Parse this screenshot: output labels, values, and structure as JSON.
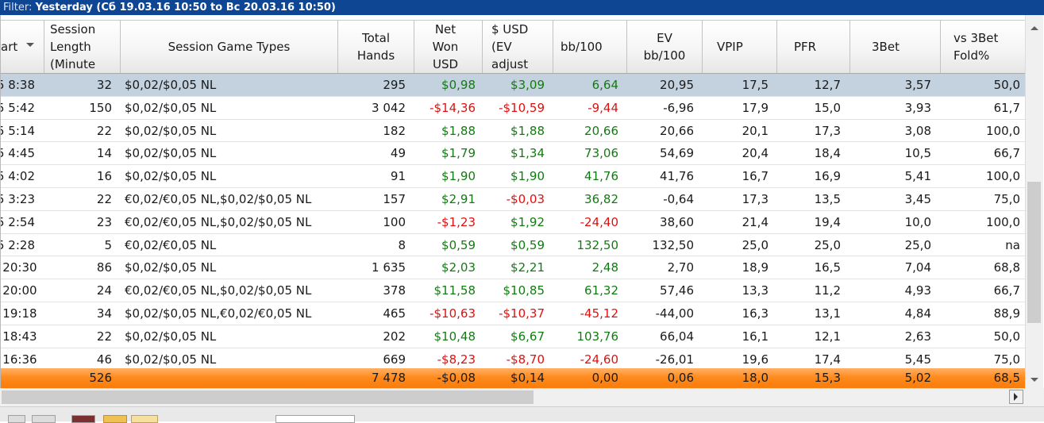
{
  "filter": {
    "label": "Filter:",
    "value": "Yesterday (Сб 19.03.16 10:50 to Вс 20.03.16 10:50)"
  },
  "columns": [
    {
      "key": "start",
      "label": "art"
    },
    {
      "key": "length",
      "label": "Session Length (Minute"
    },
    {
      "key": "types",
      "label": "Session Game Types"
    },
    {
      "key": "hands",
      "label": "Total Hands"
    },
    {
      "key": "net",
      "label": "Net Won USD"
    },
    {
      "key": "ev",
      "label": "$ USD (EV adjust"
    },
    {
      "key": "bb",
      "label": "bb/100"
    },
    {
      "key": "evbb",
      "label": "EV bb/100"
    },
    {
      "key": "vpip",
      "label": "VPIP"
    },
    {
      "key": "pfr",
      "label": "PFR"
    },
    {
      "key": "bet3",
      "label": "3Bet"
    },
    {
      "key": "fold3",
      "label": "vs 3Bet Fold%"
    }
  ],
  "rows": [
    {
      "start": "5 8:38",
      "length": "32",
      "types": "$0,02/$0,05 NL",
      "hands": "295",
      "net": "$0,98",
      "ev": "$3,09",
      "bb": "6,64",
      "evbb": "20,95",
      "vpip": "17,5",
      "pfr": "12,7",
      "bet3": "3,57",
      "fold3": "50,0",
      "selected": true
    },
    {
      "start": "5 5:42",
      "length": "150",
      "types": "$0,02/$0,05 NL",
      "hands": "3 042",
      "net": "-$14,36",
      "ev": "-$10,59",
      "bb": "-9,44",
      "evbb": "-6,96",
      "vpip": "17,9",
      "pfr": "15,0",
      "bet3": "3,93",
      "fold3": "61,7"
    },
    {
      "start": "5 5:14",
      "length": "22",
      "types": "$0,02/$0,05 NL",
      "hands": "182",
      "net": "$1,88",
      "ev": "$1,88",
      "bb": "20,66",
      "evbb": "20,66",
      "vpip": "20,1",
      "pfr": "17,3",
      "bet3": "3,08",
      "fold3": "100,0"
    },
    {
      "start": "5 4:45",
      "length": "14",
      "types": "$0,02/$0,05 NL",
      "hands": "49",
      "net": "$1,79",
      "ev": "$1,34",
      "bb": "73,06",
      "evbb": "54,69",
      "vpip": "20,4",
      "pfr": "18,4",
      "bet3": "10,5",
      "fold3": "66,7"
    },
    {
      "start": "5 4:02",
      "length": "16",
      "types": "$0,02/$0,05 NL",
      "hands": "91",
      "net": "$1,90",
      "ev": "$1,90",
      "bb": "41,76",
      "evbb": "41,76",
      "vpip": "16,7",
      "pfr": "16,9",
      "bet3": "5,41",
      "fold3": "100,0"
    },
    {
      "start": "5 3:23",
      "length": "22",
      "types": "€0,02/€0,05 NL,$0,02/$0,05 NL",
      "hands": "157",
      "net": "$2,91",
      "ev": "-$0,03",
      "bb": "36,82",
      "evbb": "-0,64",
      "vpip": "17,3",
      "pfr": "13,5",
      "bet3": "3,45",
      "fold3": "75,0"
    },
    {
      "start": "5 2:54",
      "length": "23",
      "types": "€0,02/€0,05 NL,$0,02/$0,05 NL",
      "hands": "100",
      "net": "-$1,23",
      "ev": "$1,92",
      "bb": "-24,40",
      "evbb": "38,60",
      "vpip": "21,4",
      "pfr": "19,4",
      "bet3": "10,0",
      "fold3": "100,0"
    },
    {
      "start": "5 2:28",
      "length": "5",
      "types": "€0,02/€0,05 NL",
      "hands": "8",
      "net": "$0,59",
      "ev": "$0,59",
      "bb": "132,50",
      "evbb": "132,50",
      "vpip": "25,0",
      "pfr": "25,0",
      "bet3": "25,0",
      "fold3": "na"
    },
    {
      "start": "5 20:30",
      "length": "86",
      "types": "$0,02/$0,05 NL",
      "hands": "1 635",
      "net": "$2,03",
      "ev": "$2,21",
      "bb": "2,48",
      "evbb": "2,70",
      "vpip": "18,9",
      "pfr": "16,5",
      "bet3": "7,04",
      "fold3": "68,8"
    },
    {
      "start": "5 20:00",
      "length": "24",
      "types": "€0,02/€0,05 NL,$0,02/$0,05 NL",
      "hands": "378",
      "net": "$11,58",
      "ev": "$10,85",
      "bb": "61,32",
      "evbb": "57,46",
      "vpip": "13,3",
      "pfr": "11,2",
      "bet3": "4,93",
      "fold3": "66,7"
    },
    {
      "start": "5 19:18",
      "length": "34",
      "types": "$0,02/$0,05 NL,€0,02/€0,05 NL",
      "hands": "465",
      "net": "-$10,63",
      "ev": "-$10,37",
      "bb": "-45,12",
      "evbb": "-44,00",
      "vpip": "16,3",
      "pfr": "13,1",
      "bet3": "4,84",
      "fold3": "88,9"
    },
    {
      "start": "5 18:43",
      "length": "22",
      "types": "$0,02/$0,05 NL",
      "hands": "202",
      "net": "$10,48",
      "ev": "$6,67",
      "bb": "103,76",
      "evbb": "66,04",
      "vpip": "16,1",
      "pfr": "12,1",
      "bet3": "2,63",
      "fold3": "50,0"
    },
    {
      "start": "5 16:36",
      "length": "46",
      "types": "$0,02/$0,05 NL",
      "hands": "669",
      "net": "-$8,23",
      "ev": "-$8,70",
      "bb": "-24,60",
      "evbb": "-26,01",
      "vpip": "19,6",
      "pfr": "17,4",
      "bet3": "5,45",
      "fold3": "75,0"
    }
  ],
  "totals": {
    "length": "526",
    "hands": "7 478",
    "net": "-$0,08",
    "ev": "$0,14",
    "bb": "0,00",
    "evbb": "0,06",
    "vpip": "18,0",
    "pfr": "15,3",
    "bet3": "5,02",
    "fold3": "68,5"
  },
  "colors": {
    "header_bar": "#0f4694",
    "positive": "#107c10",
    "negative": "#e01010",
    "selected_row": "#c4d1de",
    "totals_row": "#ff8a1c"
  },
  "icons": [
    "sort-down-icon",
    "scroll-up-icon",
    "scroll-down-icon",
    "scroll-right-icon"
  ]
}
